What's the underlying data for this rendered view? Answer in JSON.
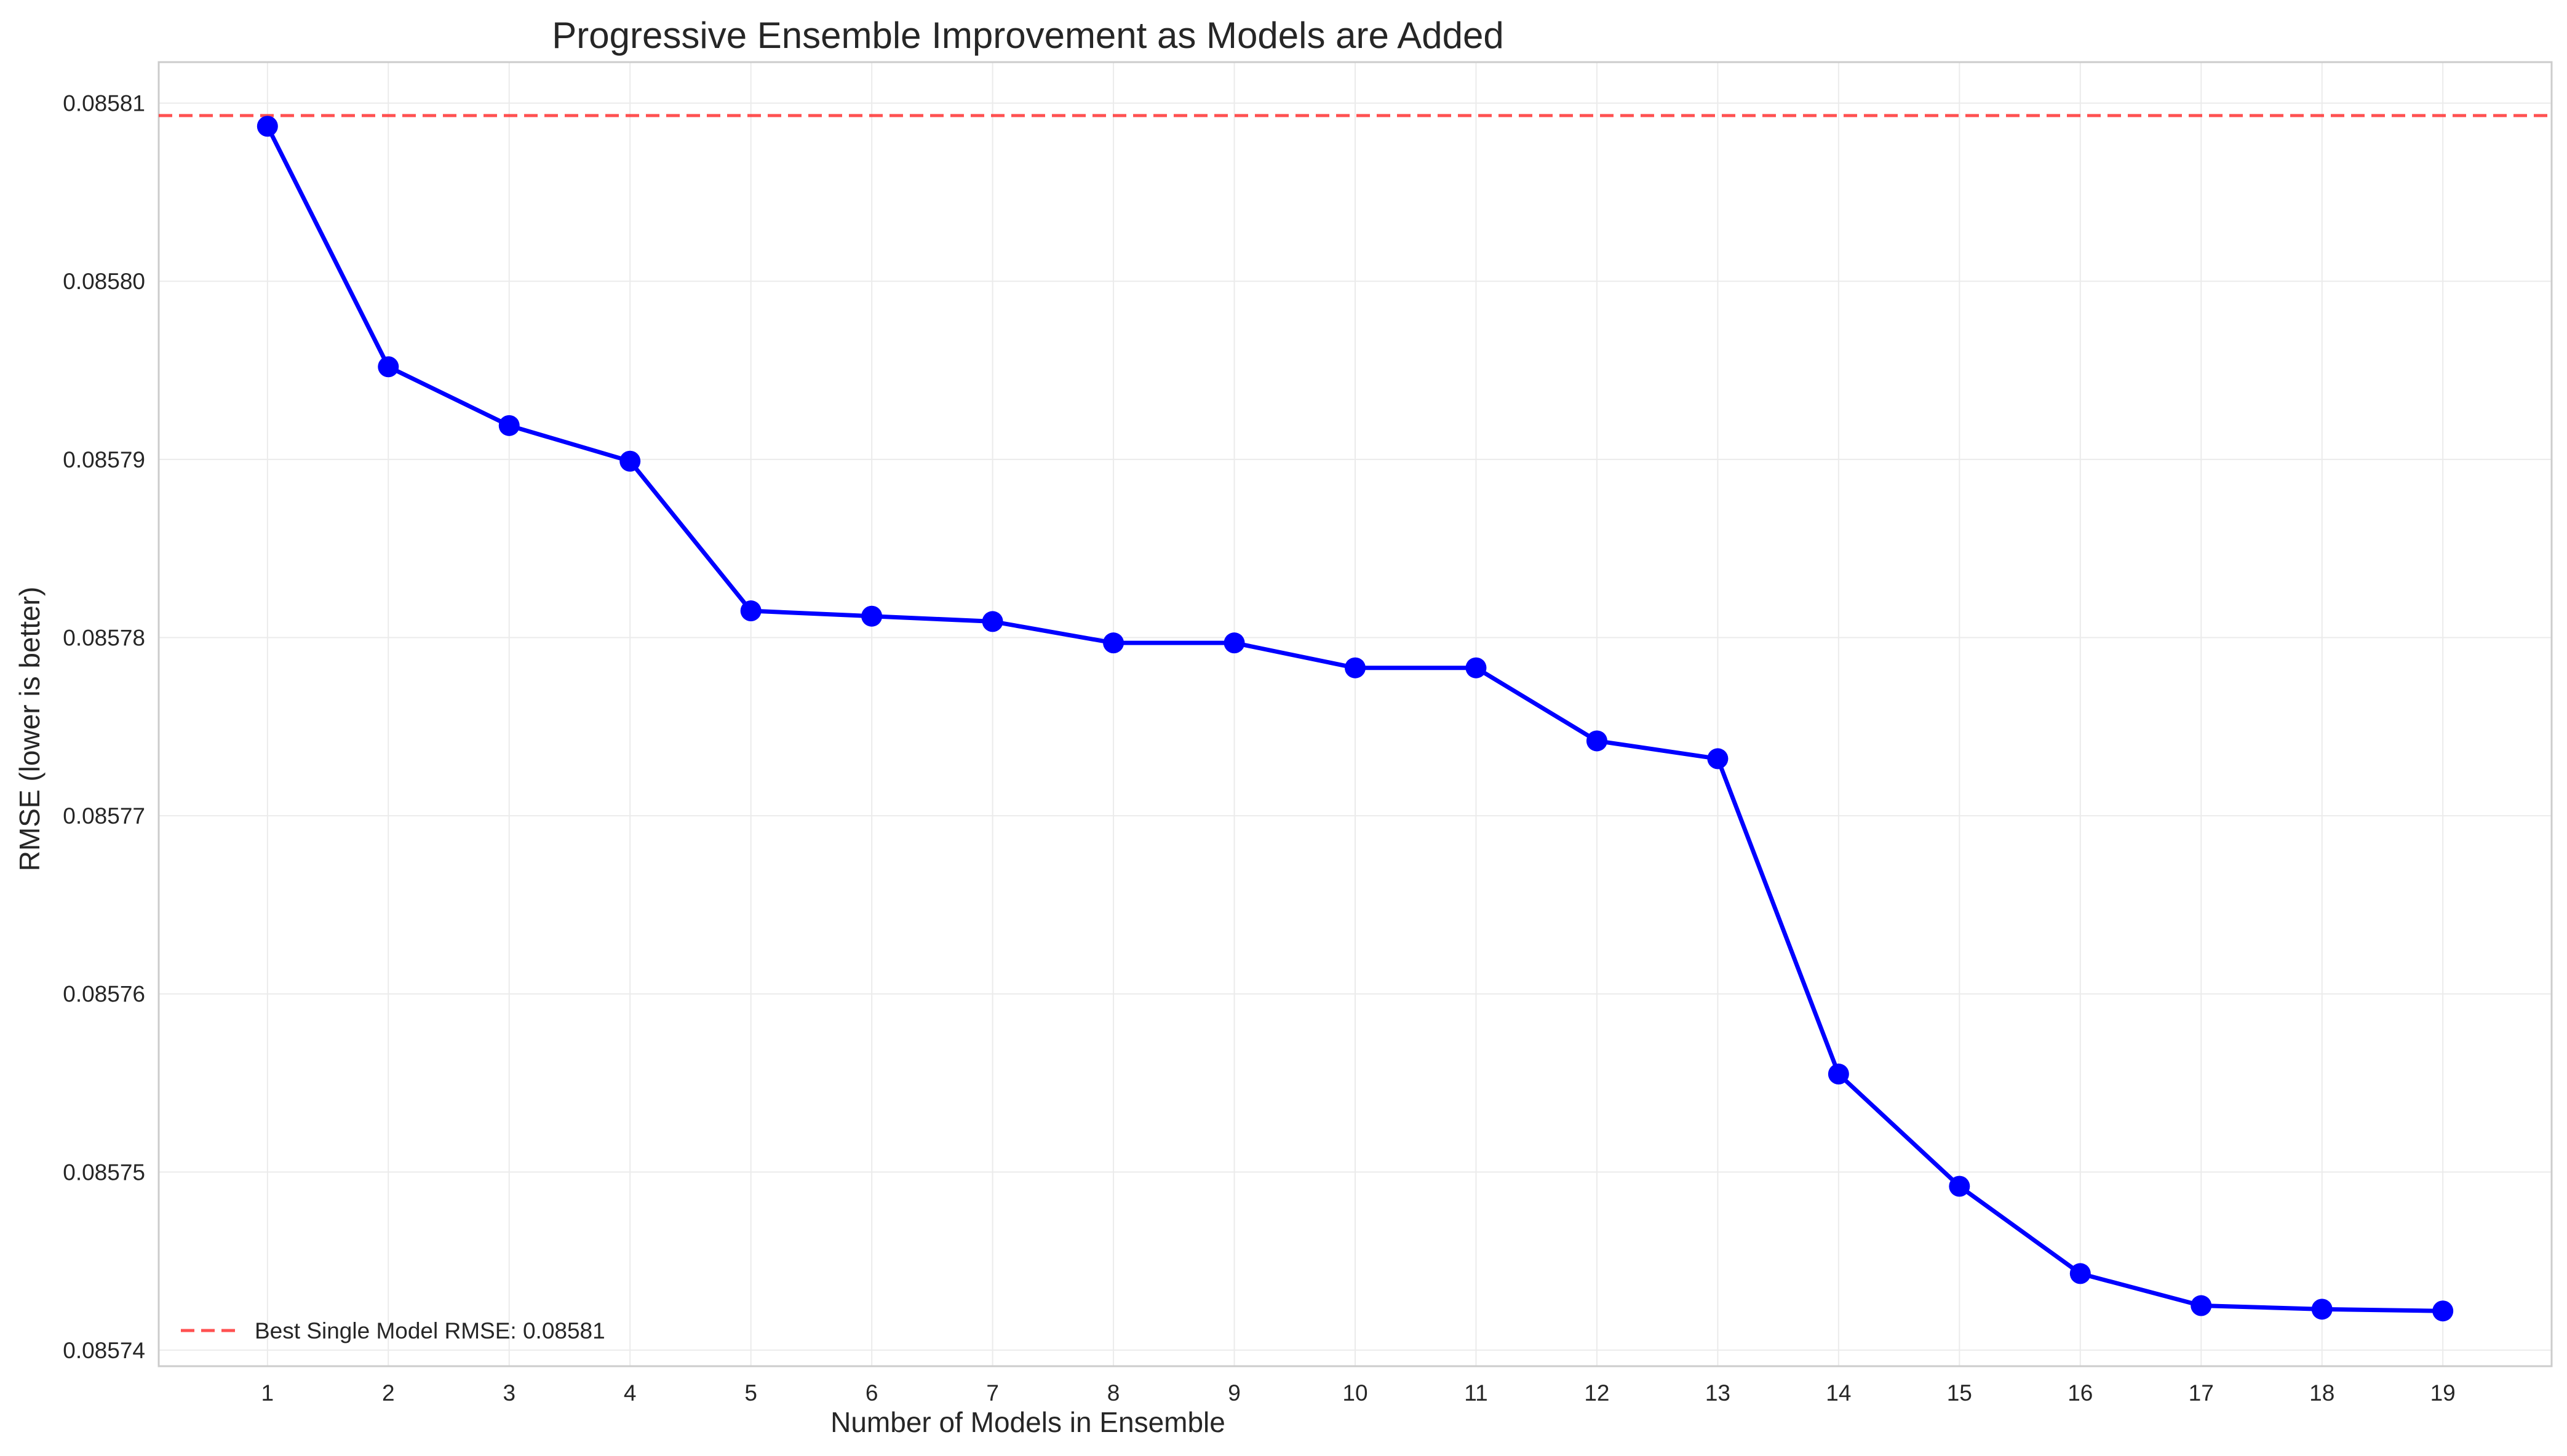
{
  "chart_data": {
    "type": "line",
    "title": "Progressive Ensemble Improvement as Models are Added",
    "xlabel": "Number of Models in Ensemble",
    "ylabel": "RMSE (lower is better)",
    "x": [
      1,
      2,
      3,
      4,
      5,
      6,
      7,
      8,
      9,
      10,
      11,
      12,
      13,
      14,
      15,
      16,
      17,
      18,
      19
    ],
    "xticks": [
      "1",
      "2",
      "3",
      "4",
      "5",
      "6",
      "7",
      "8",
      "9",
      "10",
      "11",
      "12",
      "13",
      "14",
      "15",
      "16",
      "17",
      "18",
      "19"
    ],
    "xlim": [
      0.1,
      19.9
    ],
    "ylim": [
      0.0857391,
      0.0858123
    ],
    "yticks": [
      0.08574,
      0.08575,
      0.08576,
      0.08577,
      0.08578,
      0.08579,
      0.0858,
      0.08581
    ],
    "ytick_labels": [
      "0.08574",
      "0.08575",
      "0.08576",
      "0.08577",
      "0.08578",
      "0.08579",
      "0.08580",
      "0.08581"
    ],
    "grid": true,
    "series": [
      {
        "name": "",
        "color": "#0000ff",
        "marker": "circle",
        "values": [
          0.0858087,
          0.0857952,
          0.0857919,
          0.0857899,
          0.0857815,
          0.0857812,
          0.0857809,
          0.0857797,
          0.0857797,
          0.0857783,
          0.0857783,
          0.0857742,
          0.0857732,
          0.0857555,
          0.0857492,
          0.0857443,
          0.0857425,
          0.0857423,
          0.0857422
        ]
      }
    ],
    "reference_lines": [
      {
        "name": "Best Single Model RMSE: 0.08581",
        "orientation": "horizontal",
        "value": 0.0858093,
        "color": "#ff3333",
        "style": "dashed"
      }
    ],
    "legend": {
      "placement": "lower-left",
      "entries": [
        "Best Single Model RMSE: 0.08581"
      ]
    }
  }
}
